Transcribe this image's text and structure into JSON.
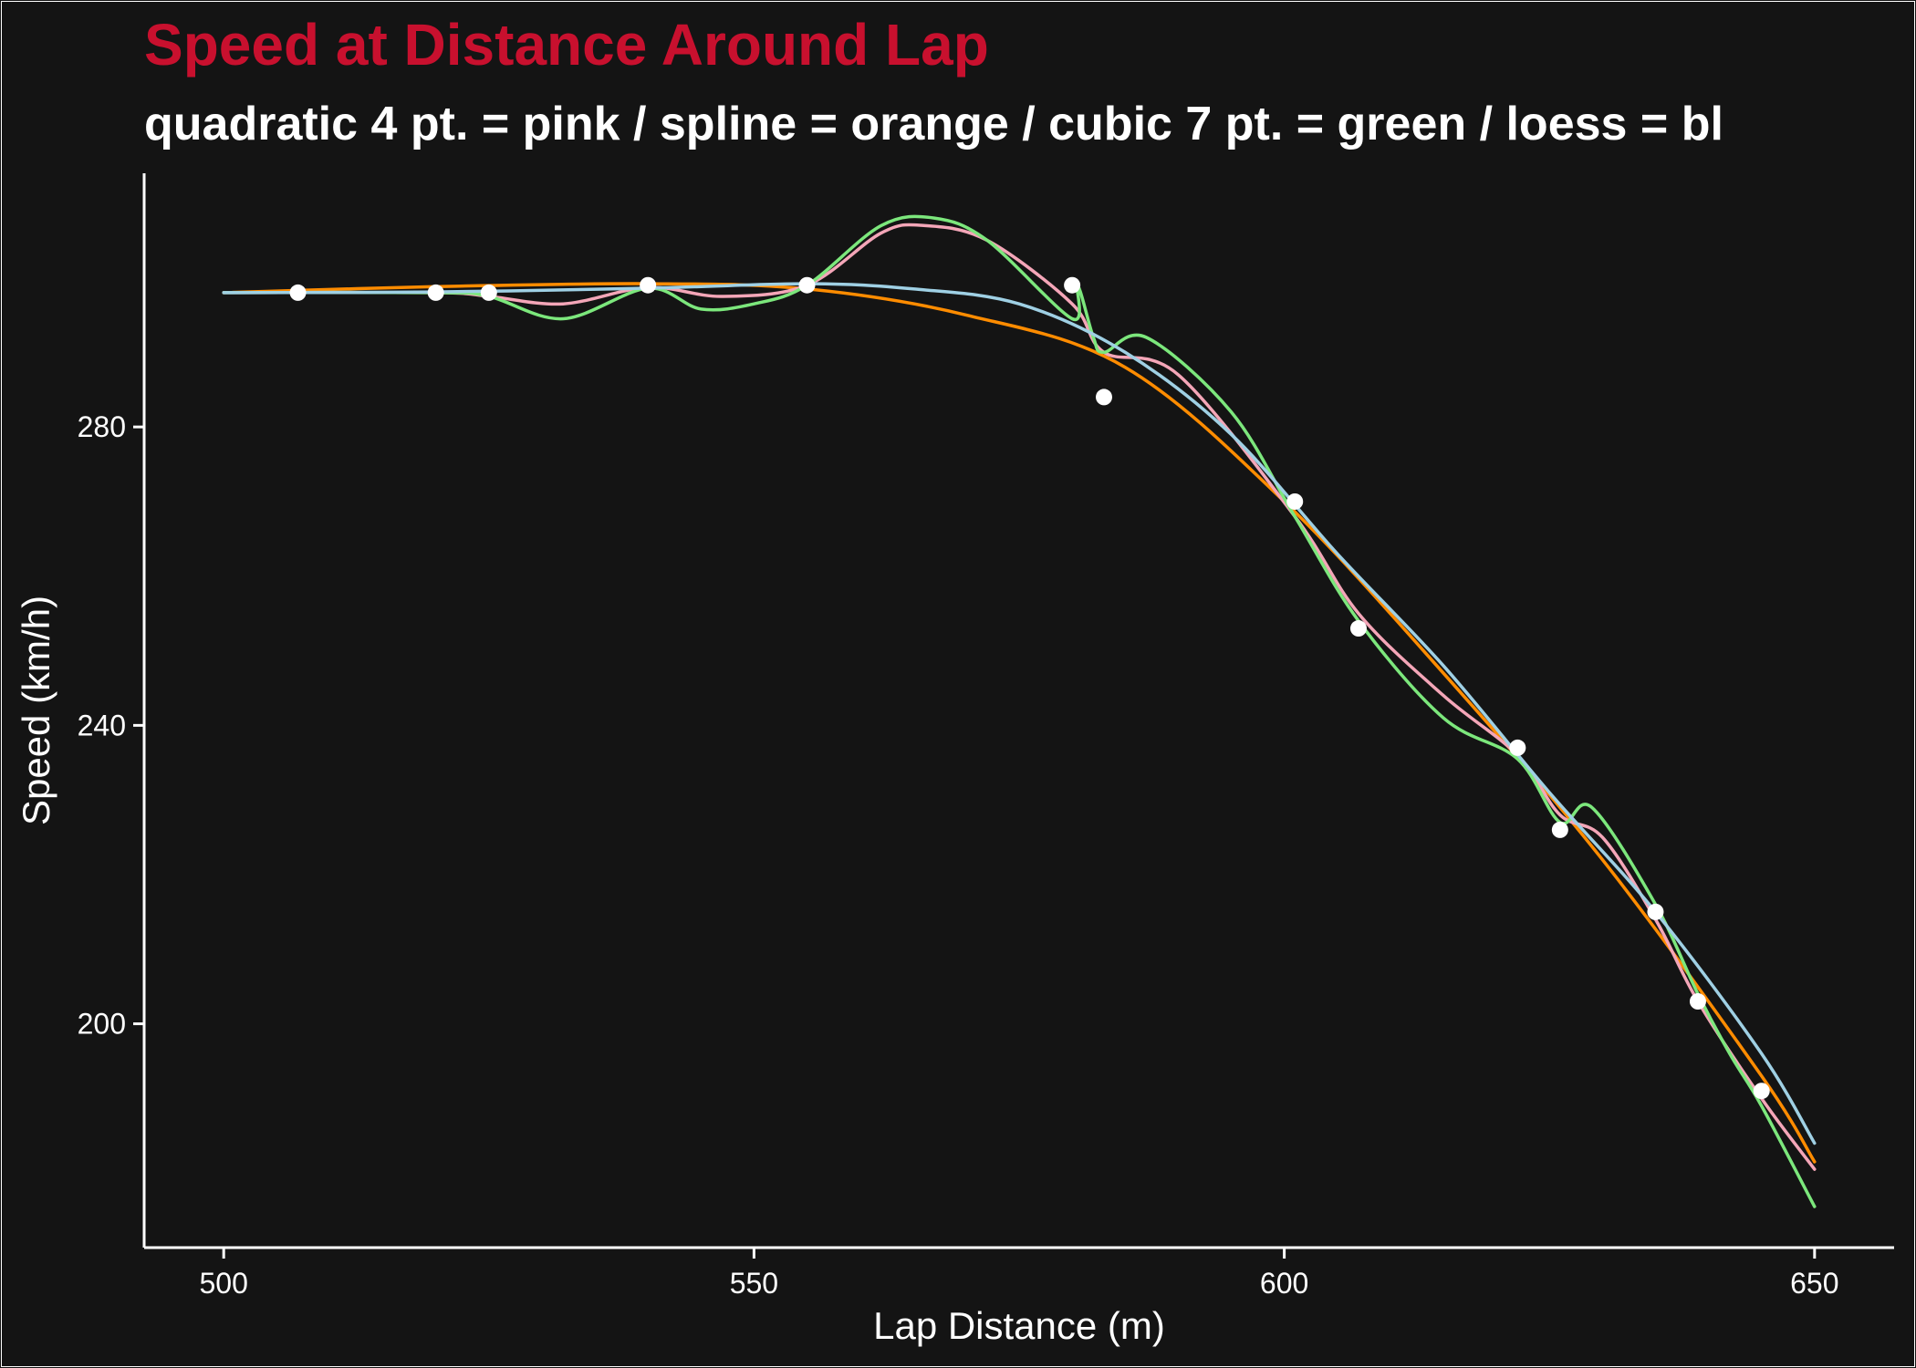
{
  "chart_data": {
    "type": "line",
    "title": "Speed at Distance Around Lap",
    "subtitle": "quadratic 4 pt. = pink / spline = orange / cubic 7 pt. = green / loess = bl",
    "xlabel": "Lap Distance (m)",
    "ylabel": "Speed (km/h)",
    "xlim": [
      492.5,
      657.5
    ],
    "ylim": [
      170,
      314
    ],
    "x_ticks": [
      500,
      550,
      600,
      650
    ],
    "y_ticks": [
      200,
      240,
      280
    ],
    "grid": false,
    "legend": "none",
    "colors": {
      "background": "#141414",
      "title": "#c8102e",
      "text": "#ffffff",
      "points": "#ffffff",
      "quadratic": "#f4a6b8",
      "spline": "#ff8c00",
      "cubic": "#7ce77c",
      "loess": "#9fd0e4"
    },
    "points": [
      {
        "x": 507,
        "y": 298
      },
      {
        "x": 520,
        "y": 298
      },
      {
        "x": 525,
        "y": 298
      },
      {
        "x": 540,
        "y": 299
      },
      {
        "x": 555,
        "y": 299
      },
      {
        "x": 580,
        "y": 299
      },
      {
        "x": 583,
        "y": 284
      },
      {
        "x": 601,
        "y": 270
      },
      {
        "x": 607,
        "y": 253
      },
      {
        "x": 622,
        "y": 237
      },
      {
        "x": 626,
        "y": 226
      },
      {
        "x": 635,
        "y": 215
      },
      {
        "x": 639,
        "y": 203
      },
      {
        "x": 645,
        "y": 191
      }
    ],
    "series": [
      {
        "color_key": "spline",
        "x": [
          500,
          520,
          540,
          555,
          570,
          585,
          600,
          615,
          630,
          645,
          650
        ],
        "y": [
          298,
          298.8,
          299.2,
          298.5,
          295,
          288,
          270,
          247,
          222,
          193,
          181.5
        ]
      },
      {
        "color_key": "quadratic",
        "x": [
          500,
          520,
          525,
          532,
          540,
          547,
          555,
          562,
          566,
          572,
          580,
          583,
          590,
          601,
          607,
          615,
          622,
          626,
          630,
          635,
          639,
          645,
          650
        ],
        "y": [
          298,
          298,
          297.5,
          296.5,
          298.7,
          297.5,
          299,
          306,
          307,
          305,
          296.5,
          290,
          287,
          268,
          255,
          244,
          236,
          228,
          225,
          214,
          203,
          190,
          180.5
        ]
      },
      {
        "color_key": "cubic",
        "x": [
          500,
          520,
          525,
          532,
          540,
          545,
          550,
          555,
          562,
          567,
          572,
          580,
          580.5,
          582,
          583,
          587,
          595,
          601,
          607,
          615,
          622,
          626,
          629,
          635,
          639,
          642,
          645,
          650
        ],
        "y": [
          298,
          298,
          297.5,
          294.5,
          298.6,
          295.8,
          296.5,
          299,
          307,
          308,
          305,
          294.5,
          299,
          292,
          290,
          292,
          282,
          268,
          254,
          241,
          235.5,
          227,
          229,
          216,
          204,
          196,
          189,
          175.5
        ]
      },
      {
        "color_key": "loess",
        "x": [
          500,
          520,
          540,
          555,
          565,
          575,
          585,
          595,
          605,
          615,
          625,
          635,
          645,
          650
        ],
        "y": [
          298,
          298.1,
          298.6,
          299.2,
          298.5,
          296.5,
          290,
          279,
          263,
          248,
          231,
          215,
          196,
          184
        ]
      }
    ]
  }
}
